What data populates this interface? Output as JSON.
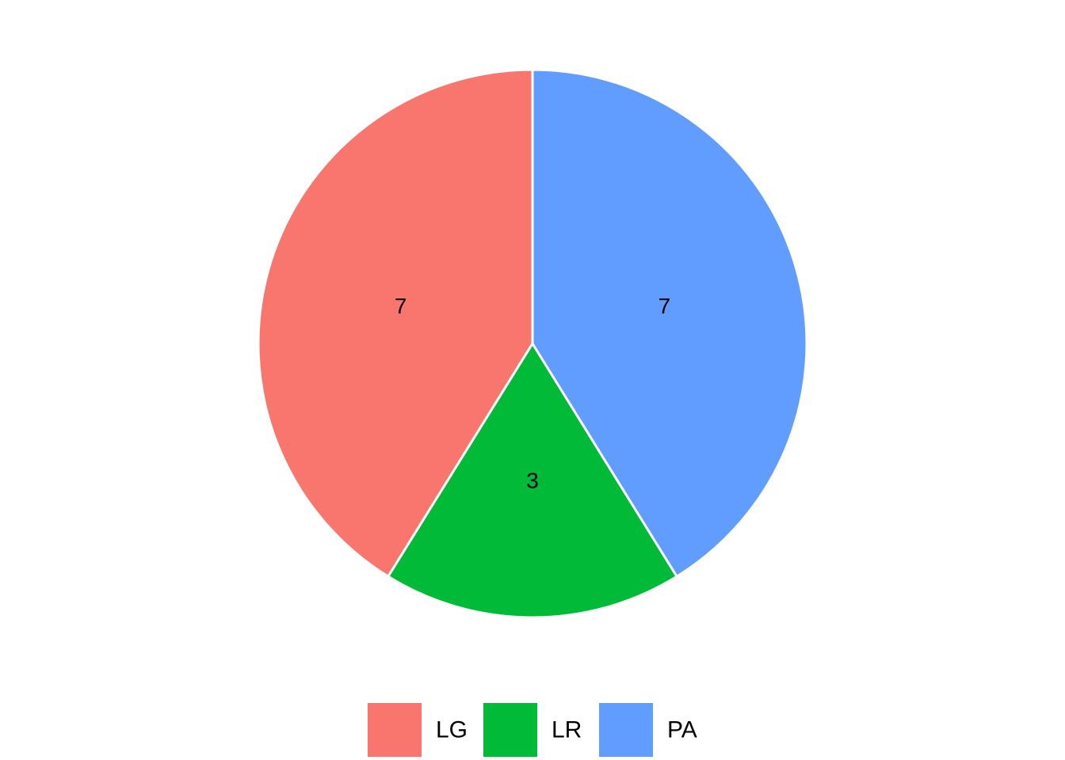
{
  "chart_data": {
    "type": "pie",
    "categories": [
      "LG",
      "LR",
      "PA"
    ],
    "values": [
      7,
      3,
      7
    ],
    "labels": [
      "7",
      "3",
      "7"
    ],
    "colors": [
      "#F8766D",
      "#00BA38",
      "#619CFF"
    ],
    "title": "",
    "legend_position": "bottom",
    "legend_title": "",
    "start_direction": "12 o'clock",
    "direction": "counter-clockwise"
  }
}
